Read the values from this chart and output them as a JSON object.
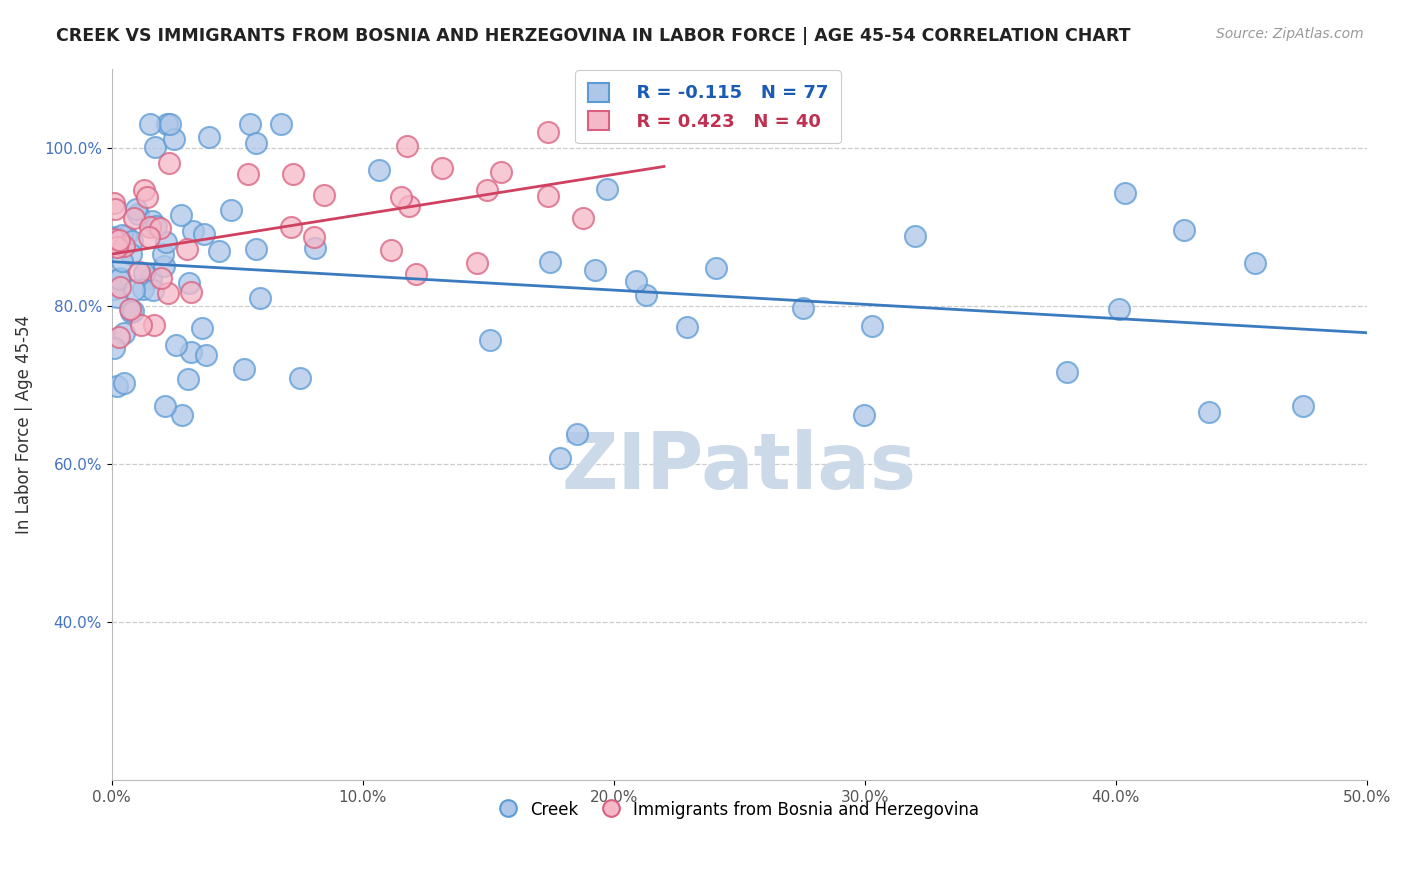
{
  "title": "CREEK VS IMMIGRANTS FROM BOSNIA AND HERZEGOVINA IN LABOR FORCE | AGE 45-54 CORRELATION CHART",
  "source": "Source: ZipAtlas.com",
  "ylabel": "In Labor Force | Age 45-54",
  "xlim": [
    0.0,
    0.5
  ],
  "ylim": [
    0.2,
    1.1
  ],
  "xtick_vals": [
    0.0,
    0.1,
    0.2,
    0.3,
    0.4,
    0.5
  ],
  "xtick_labels": [
    "0.0%",
    "10.0%",
    "20.0%",
    "30.0%",
    "40.0%",
    "50.0%"
  ],
  "ytick_vals": [
    0.4,
    0.6,
    0.8,
    1.0
  ],
  "ytick_labels": [
    "40.0%",
    "60.0%",
    "80.0%",
    "100.0%"
  ],
  "creek_R": -0.115,
  "creek_N": 77,
  "bosnia_R": 0.423,
  "bosnia_N": 40,
  "creek_fill_color": "#aec6e8",
  "creek_edge_color": "#5b9bd5",
  "creek_line_color": "#3a7abf",
  "bosnia_fill_color": "#f5b8c8",
  "bosnia_edge_color": "#d96080",
  "bosnia_line_color": "#d04060",
  "ytick_color": "#4472c4",
  "xtick_color": "#555555",
  "watermark_text": "ZIPatlas",
  "watermark_color": "#ccd9e8",
  "legend_creek_text_color": "#1a5bb5",
  "legend_bosnia_text_color": "#c03050",
  "creek_label": "Creek",
  "bosnia_label": "Immigrants from Bosnia and Herzegovina",
  "grid_color": "#cccccc",
  "spine_color": "#bbbbbb",
  "title_color": "#222222",
  "source_color": "#999999",
  "ylabel_color": "#333333"
}
